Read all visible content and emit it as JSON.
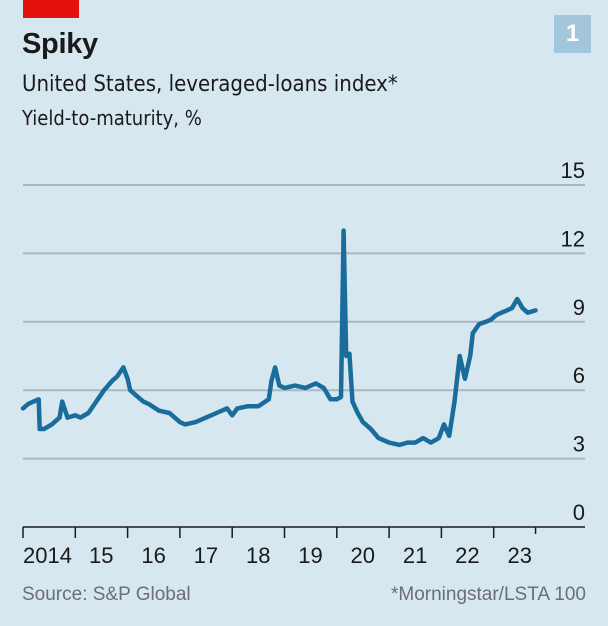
{
  "header": {
    "title": "Spiky",
    "subtitle": "United States, leveraged-loans index*",
    "unit": "Yield-to-maturity, %",
    "badge": "1",
    "accent_color": "#e3120b",
    "badge_color": "#a3c6da"
  },
  "footer": {
    "source": "Source: S&P Global",
    "note": "*Morningstar/LSTA 100"
  },
  "chart_data": {
    "type": "line",
    "title": "Spiky",
    "subtitle": "United States, leveraged-loans index*",
    "xlabel": "",
    "ylabel": "Yield-to-maturity, %",
    "ylim": [
      0,
      15
    ],
    "yticks": [
      0,
      3,
      6,
      9,
      12,
      15
    ],
    "ytick_labels": [
      "0",
      "3",
      "6",
      "9",
      "12",
      "15"
    ],
    "xlim": [
      2014.0,
      2025.0
    ],
    "xticks": [
      2014,
      2015,
      2016,
      2017,
      2018,
      2019,
      2020,
      2021,
      2022,
      2023,
      2023.8
    ],
    "xtick_labels": [
      "2014",
      "15",
      "16",
      "17",
      "18",
      "19",
      "20",
      "21",
      "22",
      "23",
      ""
    ],
    "grid": true,
    "legend": "none",
    "line_color": "#1a6c9c",
    "series": [
      {
        "name": "Yield-to-maturity",
        "x": [
          2014.0,
          2014.1,
          2014.2,
          2014.3,
          2014.32,
          2014.4,
          2014.55,
          2014.7,
          2014.75,
          2014.85,
          2015.0,
          2015.1,
          2015.25,
          2015.4,
          2015.55,
          2015.7,
          2015.8,
          2015.92,
          2016.0,
          2016.05,
          2016.15,
          2016.3,
          2016.4,
          2016.6,
          2016.8,
          2016.9,
          2017.0,
          2017.1,
          2017.3,
          2017.5,
          2017.7,
          2017.9,
          2018.0,
          2018.1,
          2018.3,
          2018.5,
          2018.7,
          2018.75,
          2018.82,
          2018.9,
          2019.0,
          2019.2,
          2019.4,
          2019.6,
          2019.75,
          2019.88,
          2020.0,
          2020.08,
          2020.13,
          2020.18,
          2020.24,
          2020.3,
          2020.4,
          2020.5,
          2020.65,
          2020.8,
          2021.0,
          2021.2,
          2021.35,
          2021.5,
          2021.65,
          2021.8,
          2021.95,
          2022.05,
          2022.15,
          2022.25,
          2022.35,
          2022.45,
          2022.55,
          2022.6,
          2022.72,
          2022.85,
          2022.95,
          2023.05,
          2023.15,
          2023.25,
          2023.35,
          2023.45,
          2023.55,
          2023.65,
          2023.8
        ],
        "values": [
          5.2,
          5.4,
          5.5,
          5.6,
          4.3,
          4.3,
          4.5,
          4.8,
          5.5,
          4.8,
          4.9,
          4.8,
          5.0,
          5.5,
          6.0,
          6.4,
          6.6,
          7.0,
          6.5,
          6.0,
          5.8,
          5.5,
          5.4,
          5.1,
          5.0,
          4.8,
          4.6,
          4.5,
          4.6,
          4.8,
          5.0,
          5.2,
          4.9,
          5.2,
          5.3,
          5.3,
          5.6,
          6.4,
          7.0,
          6.2,
          6.1,
          6.2,
          6.1,
          6.3,
          6.1,
          5.6,
          5.6,
          5.7,
          13.0,
          7.5,
          7.6,
          5.5,
          5.0,
          4.6,
          4.3,
          3.9,
          3.7,
          3.6,
          3.7,
          3.7,
          3.9,
          3.7,
          3.9,
          4.5,
          4.0,
          5.5,
          7.5,
          6.5,
          7.5,
          8.5,
          8.9,
          9.0,
          9.1,
          9.3,
          9.4,
          9.5,
          9.6,
          10.0,
          9.6,
          9.4,
          9.5
        ]
      }
    ]
  }
}
